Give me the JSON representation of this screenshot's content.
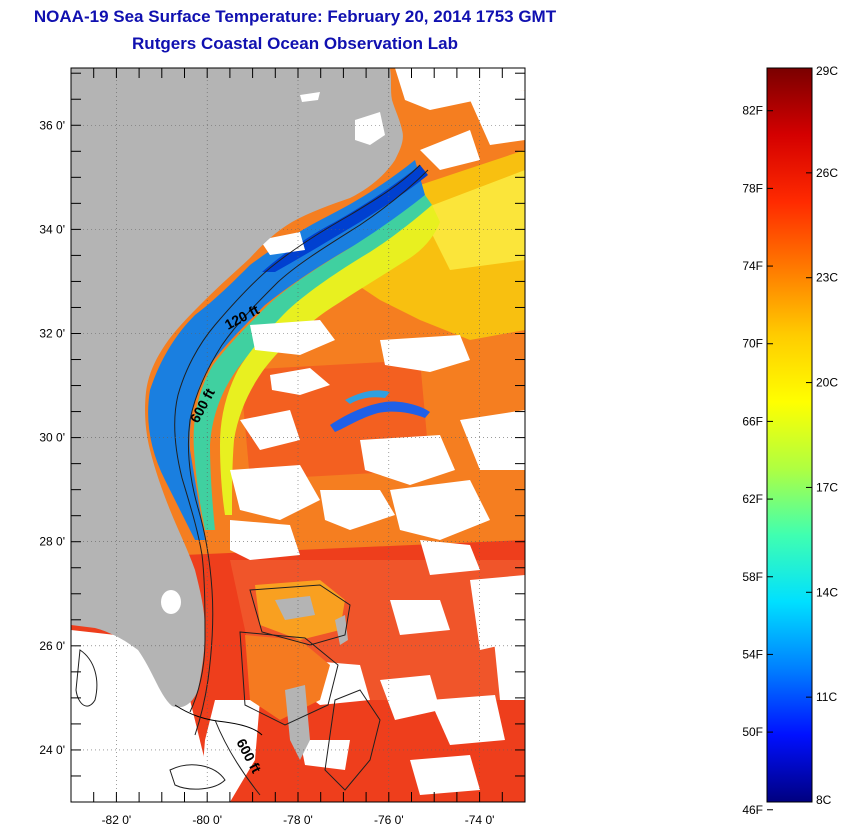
{
  "title": "NOAA-19 Sea Surface Temperature:  February 20, 2014 1753 GMT",
  "subtitle": "Rutgers Coastal Ocean Observation Lab",
  "map": {
    "lat_range": [
      23,
      37.1
    ],
    "lon_range": [
      -83,
      -73
    ],
    "lat_ticks": [
      {
        "value": 36,
        "label": "36 0'"
      },
      {
        "value": 34,
        "label": "34 0'"
      },
      {
        "value": 32,
        "label": "32 0'"
      },
      {
        "value": 30,
        "label": "30 0'"
      },
      {
        "value": 28,
        "label": "28 0'"
      },
      {
        "value": 26,
        "label": "26 0'"
      },
      {
        "value": 24,
        "label": "24 0'"
      }
    ],
    "lon_ticks": [
      {
        "value": -82,
        "label": "-82 0'"
      },
      {
        "value": -80,
        "label": "-80 0'"
      },
      {
        "value": -78,
        "label": "-78 0'"
      },
      {
        "value": -76,
        "label": "-76 0'"
      },
      {
        "value": -74,
        "label": "-74 0'"
      }
    ],
    "contour_labels": [
      "120 ft",
      "600 ft",
      "600 ft"
    ],
    "land_color": "#b4b4b4"
  },
  "colorbar": {
    "celsius_labels": [
      "29C",
      "26C",
      "23C",
      "20C",
      "17C",
      "14C",
      "11C",
      "8C"
    ],
    "fahrenheit_labels": [
      "82F",
      "78F",
      "74F",
      "70F",
      "66F",
      "62F",
      "58F",
      "54F",
      "50F",
      "46F"
    ],
    "colors_top_to_bottom": [
      "#7a0000",
      "#d40000",
      "#ff2a00",
      "#ff7a00",
      "#ffcc00",
      "#ffff00",
      "#b0ff40",
      "#40ffb0",
      "#00e0ff",
      "#0080ff",
      "#0010ff",
      "#000080"
    ]
  }
}
